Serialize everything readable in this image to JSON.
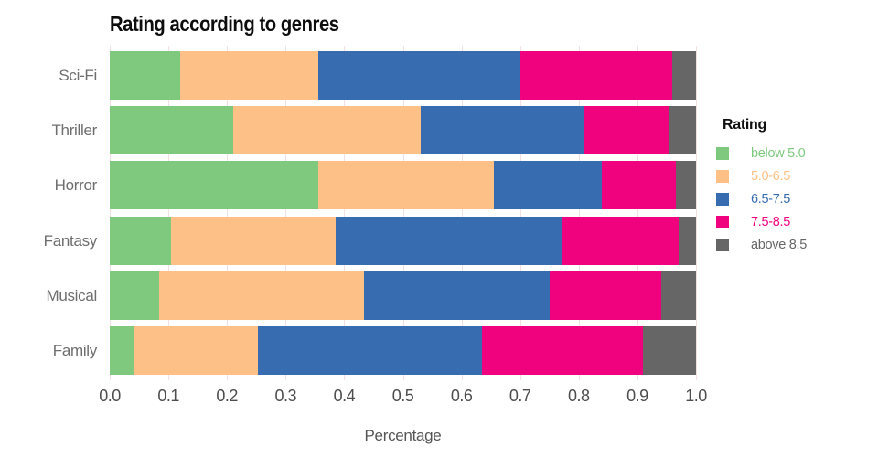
{
  "title": "Rating according to genres",
  "x_axis": {
    "label": "Percentage",
    "ticks": [
      "0.0",
      "0.1",
      "0.2",
      "0.3",
      "0.4",
      "0.5",
      "0.6",
      "0.7",
      "0.8",
      "0.9",
      "1.0"
    ],
    "min": 0,
    "max": 1
  },
  "legend": {
    "title": "Rating",
    "items": [
      {
        "label": "below 5.0",
        "color": "#7FC97F"
      },
      {
        "label": "5.0-6.5",
        "color": "#FDC086"
      },
      {
        "label": "6.5-7.5",
        "color": "#386CB0"
      },
      {
        "label": "7.5-8.5",
        "color": "#F0027F"
      },
      {
        "label": "above 8.5",
        "color": "#666666"
      }
    ]
  },
  "colors": {
    "background": "#ffffff",
    "gridline": "#f3e1e1",
    "title_text": "#0d0d0d",
    "axis_text": "#4d4d4d",
    "category_text": "#6e6e6e"
  },
  "chart_data": {
    "type": "bar",
    "orientation": "horizontal",
    "stacked": true,
    "title": "Rating according to genres",
    "xlabel": "Percentage",
    "xlim": [
      0,
      1
    ],
    "grid": true,
    "legend_position": "right",
    "categories": [
      "Sci-Fi",
      "Thriller",
      "Horror",
      "Fantasy",
      "Musical",
      "Family"
    ],
    "series": [
      {
        "name": "below 5.0",
        "color": "#7FC97F",
        "values": [
          0.12,
          0.21,
          0.355,
          0.105,
          0.085,
          0.042
        ]
      },
      {
        "name": "5.0-6.5",
        "color": "#FDC086",
        "values": [
          0.235,
          0.32,
          0.3,
          0.28,
          0.348,
          0.21
        ]
      },
      {
        "name": "6.5-7.5",
        "color": "#386CB0",
        "values": [
          0.345,
          0.28,
          0.185,
          0.385,
          0.317,
          0.383
        ]
      },
      {
        "name": "7.5-8.5",
        "color": "#F0027F",
        "values": [
          0.26,
          0.145,
          0.125,
          0.2,
          0.19,
          0.275
        ]
      },
      {
        "name": "above 8.5",
        "color": "#666666",
        "values": [
          0.04,
          0.045,
          0.035,
          0.03,
          0.06,
          0.09
        ]
      }
    ]
  }
}
